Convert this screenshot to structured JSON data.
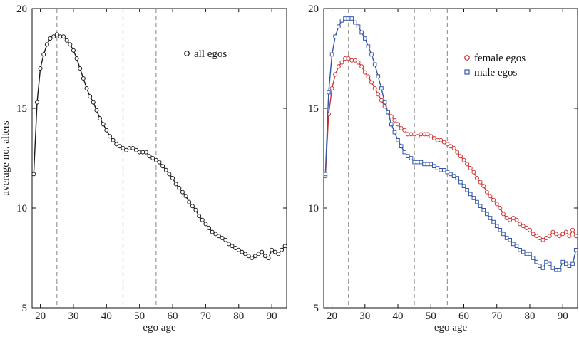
{
  "chart_data": [
    {
      "type": "line",
      "xlabel": "ego age",
      "ylabel": "average no. alters",
      "xlim": [
        17.5,
        94.5
      ],
      "ylim": [
        5,
        20
      ],
      "xticks": [
        20,
        30,
        40,
        50,
        60,
        70,
        80,
        90
      ],
      "yticks": [
        5,
        10,
        15,
        20
      ],
      "reference_lines_x": [
        25,
        45,
        55
      ],
      "legend_position": "top-right",
      "series": [
        {
          "name": "all egos",
          "marker": "circle",
          "color": "#1a1a1a",
          "x": [
            18,
            19,
            20,
            21,
            22,
            23,
            24,
            25,
            26,
            27,
            28,
            29,
            30,
            31,
            32,
            33,
            34,
            35,
            36,
            37,
            38,
            39,
            40,
            41,
            42,
            43,
            44,
            45,
            46,
            47,
            48,
            49,
            50,
            51,
            52,
            53,
            54,
            55,
            56,
            57,
            58,
            59,
            60,
            61,
            62,
            63,
            64,
            65,
            66,
            67,
            68,
            69,
            70,
            71,
            72,
            73,
            74,
            75,
            76,
            77,
            78,
            79,
            80,
            81,
            82,
            83,
            84,
            85,
            86,
            87,
            88,
            89,
            90,
            91,
            92,
            93,
            94
          ],
          "y": [
            11.7,
            15.3,
            17.0,
            17.7,
            18.2,
            18.5,
            18.6,
            18.7,
            18.6,
            18.6,
            18.4,
            18.2,
            17.9,
            17.5,
            17.0,
            16.5,
            16.0,
            15.6,
            15.3,
            14.9,
            14.5,
            14.2,
            13.9,
            13.6,
            13.4,
            13.2,
            13.1,
            13.0,
            12.9,
            13.0,
            13.0,
            12.9,
            12.8,
            12.8,
            12.8,
            12.6,
            12.5,
            12.4,
            12.3,
            12.1,
            11.9,
            11.7,
            11.5,
            11.2,
            11.0,
            10.8,
            10.6,
            10.3,
            10.1,
            9.9,
            9.6,
            9.4,
            9.2,
            9.0,
            8.8,
            8.7,
            8.6,
            8.5,
            8.4,
            8.2,
            8.1,
            8.0,
            7.9,
            7.8,
            7.7,
            7.6,
            7.5,
            7.6,
            7.7,
            7.8,
            7.6,
            7.5,
            7.9,
            7.8,
            7.7,
            7.9,
            8.1
          ]
        }
      ]
    },
    {
      "type": "line",
      "xlabel": "ego age",
      "ylabel": "",
      "xlim": [
        17.5,
        94.5
      ],
      "ylim": [
        5,
        20
      ],
      "xticks": [
        20,
        30,
        40,
        50,
        60,
        70,
        80,
        90
      ],
      "yticks": [
        5,
        10,
        15,
        20
      ],
      "reference_lines_x": [
        25,
        45,
        55
      ],
      "legend_position": "top-right",
      "series": [
        {
          "name": "female egos",
          "marker": "circle",
          "color": "#cc3333",
          "x": [
            18,
            19,
            20,
            21,
            22,
            23,
            24,
            25,
            26,
            27,
            28,
            29,
            30,
            31,
            32,
            33,
            34,
            35,
            36,
            37,
            38,
            39,
            40,
            41,
            42,
            43,
            44,
            45,
            46,
            47,
            48,
            49,
            50,
            51,
            52,
            53,
            54,
            55,
            56,
            57,
            58,
            59,
            60,
            61,
            62,
            63,
            64,
            65,
            66,
            67,
            68,
            69,
            70,
            71,
            72,
            73,
            74,
            75,
            76,
            77,
            78,
            79,
            80,
            81,
            82,
            83,
            84,
            85,
            86,
            87,
            88,
            89,
            90,
            91,
            92,
            93,
            94
          ],
          "y": [
            11.6,
            14.7,
            16.0,
            16.7,
            17.1,
            17.3,
            17.5,
            17.5,
            17.4,
            17.4,
            17.3,
            17.1,
            16.8,
            16.6,
            16.3,
            16.0,
            15.7,
            15.4,
            15.1,
            14.8,
            14.6,
            14.4,
            14.2,
            14.0,
            13.9,
            13.7,
            13.7,
            13.7,
            13.6,
            13.7,
            13.7,
            13.7,
            13.6,
            13.5,
            13.4,
            13.4,
            13.3,
            13.2,
            13.1,
            13.0,
            12.8,
            12.6,
            12.4,
            12.2,
            12.0,
            11.8,
            11.5,
            11.3,
            11.1,
            10.8,
            10.6,
            10.4,
            10.2,
            10.0,
            9.7,
            9.5,
            9.4,
            9.5,
            9.4,
            9.2,
            9.1,
            9.0,
            8.9,
            8.7,
            8.6,
            8.5,
            8.4,
            8.5,
            8.6,
            8.8,
            8.7,
            8.6,
            8.7,
            8.8,
            8.6,
            8.9,
            8.6
          ]
        },
        {
          "name": "male egos",
          "marker": "square",
          "color": "#3355aa",
          "x": [
            18,
            19,
            20,
            21,
            22,
            23,
            24,
            25,
            26,
            27,
            28,
            29,
            30,
            31,
            32,
            33,
            34,
            35,
            36,
            37,
            38,
            39,
            40,
            41,
            42,
            43,
            44,
            45,
            46,
            47,
            48,
            49,
            50,
            51,
            52,
            53,
            54,
            55,
            56,
            57,
            58,
            59,
            60,
            61,
            62,
            63,
            64,
            65,
            66,
            67,
            68,
            69,
            70,
            71,
            72,
            73,
            74,
            75,
            76,
            77,
            78,
            79,
            80,
            81,
            82,
            83,
            84,
            85,
            86,
            87,
            88,
            89,
            90,
            91,
            92,
            93,
            94
          ],
          "y": [
            11.7,
            15.8,
            17.7,
            18.6,
            19.1,
            19.4,
            19.5,
            19.5,
            19.5,
            19.3,
            19.1,
            18.8,
            18.5,
            18.1,
            17.7,
            17.2,
            16.6,
            16.0,
            15.3,
            14.8,
            14.2,
            13.8,
            13.4,
            13.1,
            12.8,
            12.6,
            12.5,
            12.3,
            12.3,
            12.3,
            12.2,
            12.2,
            12.2,
            12.1,
            12.0,
            11.9,
            11.9,
            11.8,
            11.7,
            11.6,
            11.5,
            11.3,
            11.1,
            10.9,
            10.7,
            10.5,
            10.3,
            10.1,
            9.9,
            9.7,
            9.5,
            9.3,
            9.1,
            8.9,
            8.7,
            8.5,
            8.4,
            8.2,
            8.1,
            7.9,
            7.8,
            7.7,
            7.7,
            7.5,
            7.3,
            7.1,
            7.0,
            7.3,
            7.2,
            7.0,
            6.9,
            6.9,
            7.3,
            7.2,
            7.1,
            7.2,
            7.9
          ]
        }
      ]
    }
  ]
}
